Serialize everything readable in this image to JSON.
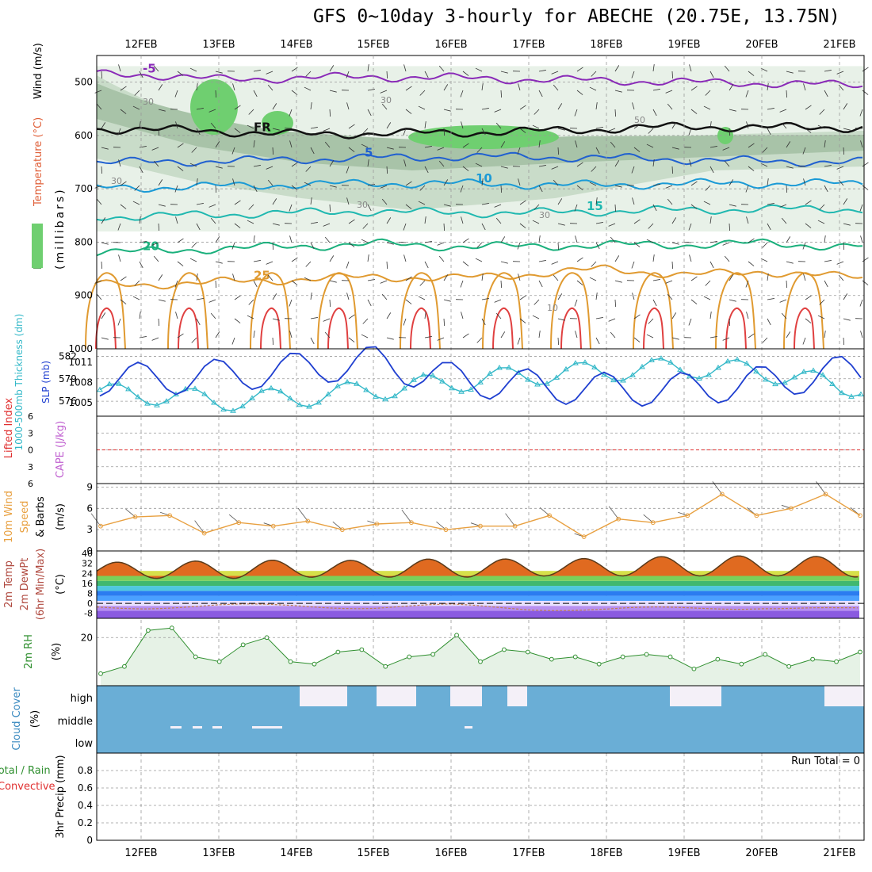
{
  "title": "GFS 0~10day 3-hourly for ABECHE (20.75E, 13.75N)",
  "dates": [
    "12FEB",
    "13FEB",
    "14FEB",
    "15FEB",
    "16FEB",
    "17FEB",
    "18FEB",
    "19FEB",
    "20FEB",
    "21FEB"
  ],
  "panel_labels": {
    "upper": {
      "wind": "Wind (m/s)",
      "temp": "Temperature (°C)",
      "rh": "RH (%)",
      "unit": "(millibars)"
    },
    "slp": {
      "thick": "1000-500mb Thickness (dm)",
      "slp": "SLP (mb)"
    },
    "cape": {
      "li": "Lifted Index",
      "cape": "CAPE (J/kg)"
    },
    "wind10": {
      "a": "10m Wind",
      "b": "Speed",
      "c": "& Barbs",
      "unit": "(m/s)"
    },
    "temp2m": {
      "a": "2m Temp",
      "b": "2m DewPt",
      "c": "(6hr Min/Max)",
      "unit": "(°C)"
    },
    "rh2m": {
      "a": "2m RH",
      "unit": "(%)"
    },
    "cloud": {
      "a": "Cloud Cover",
      "unit": "(%)"
    },
    "precip": {
      "a": "Total / Rain",
      "b": "Convective",
      "c": "3hr Precip (mm)",
      "run_total": "Run Total = 0"
    }
  },
  "colors": {
    "grid": "#999999",
    "slp": "#1f3fd0",
    "thickness": "#33b8c8",
    "wind": "#e8a040",
    "rh": "#2f8f2f",
    "cloud": "#6aaed6",
    "cloud_clear": "#f4f0f8",
    "li": "#e03030"
  },
  "chart_data": [
    {
      "type": "contour",
      "panel": "upper-air cross section",
      "ylabel": "(millibars)",
      "ylim": [
        1000,
        450
      ],
      "yticks": [
        500,
        600,
        700,
        800,
        900,
        1000
      ],
      "temperature_isotherms": [
        {
          "label": "-5",
          "pressure_mb": [
            485,
            495,
            492,
            490,
            492,
            495,
            497,
            500,
            502,
            505
          ]
        },
        {
          "label": "FR",
          "pressure_mb": [
            588,
            592,
            598,
            596,
            595,
            592,
            588,
            583,
            585,
            585
          ]
        },
        {
          "label": "5",
          "pressure_mb": [
            650,
            648,
            645,
            642,
            640,
            640,
            642,
            645,
            648,
            650
          ]
        },
        {
          "label": "10",
          "pressure_mb": [
            698,
            695,
            692,
            690,
            690,
            692,
            693,
            690,
            690,
            690
          ]
        },
        {
          "label": "15",
          "pressure_mb": [
            752,
            748,
            745,
            742,
            745,
            745,
            742,
            740,
            738,
            738
          ]
        },
        {
          "label": "20",
          "pressure_mb": [
            818,
            812,
            808,
            803,
            808,
            808,
            805,
            805,
            802,
            808
          ]
        },
        {
          "label": "25",
          "pressure_mb": [
            880,
            875,
            870,
            865,
            868,
            860,
            850,
            862,
            855,
            865
          ]
        }
      ],
      "rh_contour_labels": [
        "30",
        "50",
        "30",
        "30",
        "30",
        "30",
        "10"
      ]
    },
    {
      "type": "line",
      "panel": "SLP and thickness",
      "x": [
        "12FEB",
        "13FEB",
        "14FEB",
        "15FEB",
        "16FEB",
        "17FEB",
        "18FEB",
        "19FEB",
        "20FEB",
        "21FEB"
      ],
      "series": [
        {
          "name": "SLP (mb)",
          "axis": "right",
          "values": [
            1008.5,
            1009.0,
            1010.0,
            1011.0,
            1008.5,
            1007.5,
            1007.0,
            1007.0,
            1008.0,
            1009.5
          ]
        },
        {
          "name": "1000-500mb Thickness (dm)",
          "axis": "left",
          "values": [
            577.0,
            576.0,
            576.5,
            577.5,
            578.5,
            579.5,
            580.0,
            580.5,
            580.0,
            578.0
          ]
        }
      ],
      "ylim_left": [
        574,
        583
      ],
      "yticks_left": [
        576,
        579,
        582
      ],
      "ylim_right": [
        1003,
        1013
      ],
      "yticks_right": [
        1005,
        1008,
        1011
      ]
    },
    {
      "type": "line",
      "panel": "Lifted Index / CAPE",
      "yticks": [
        -6,
        -3,
        0,
        3,
        6
      ],
      "ylim": [
        -6,
        6
      ],
      "series": [
        {
          "name": "Lifted Index",
          "values": [
            0,
            0,
            0,
            0,
            0,
            0,
            0,
            0,
            0,
            0
          ]
        }
      ]
    },
    {
      "type": "line",
      "panel": "10m wind",
      "ylabel": "(m/s)",
      "ylim": [
        0,
        9.5
      ],
      "yticks": [
        0,
        3,
        6,
        9
      ],
      "series": [
        {
          "name": "10m Wind Speed",
          "values": [
            3.5,
            4.8,
            5.0,
            2.5,
            4.0,
            3.5,
            4.2,
            3.0,
            3.8,
            4.0,
            3.0,
            3.5,
            3.5,
            5.0,
            2.0,
            4.5,
            4.0,
            5.0,
            8.0,
            5.0,
            6.0,
            8.0,
            5.0
          ]
        }
      ]
    },
    {
      "type": "area",
      "panel": "2m temperature",
      "ylabel": "(°C)",
      "ylim": [
        -12,
        42
      ],
      "yticks": [
        -8,
        0,
        8,
        16,
        24,
        32,
        40
      ],
      "series": [
        {
          "name": "2m Temp max",
          "values": [
            33,
            35,
            34,
            35,
            36,
            35,
            37,
            38,
            38,
            37
          ]
        },
        {
          "name": "2m Temp min",
          "values": [
            20,
            20,
            21,
            21,
            21,
            22,
            22,
            22,
            22,
            21
          ]
        },
        {
          "name": "2m DewPt",
          "values": [
            -3,
            -2,
            -2,
            -3,
            -2,
            -4,
            -5,
            -4,
            -3,
            -5
          ]
        }
      ]
    },
    {
      "type": "line",
      "panel": "2m relative humidity",
      "ylabel": "(%)",
      "ylim": [
        0,
        28
      ],
      "yticks": [
        20
      ],
      "series": [
        {
          "name": "2m RH",
          "values": [
            5,
            8,
            23,
            24,
            12,
            10,
            17,
            20,
            10,
            9,
            14,
            15,
            8,
            12,
            13,
            21,
            10,
            15,
            14,
            11,
            12,
            9,
            12,
            13,
            12,
            7,
            11,
            9,
            13,
            8,
            11,
            10,
            14
          ]
        }
      ]
    },
    {
      "type": "bar",
      "panel": "Cloud cover",
      "yticks": [
        "high",
        "middle",
        "low"
      ],
      "high_cloud_gaps": [
        "14FEB",
        "15FEB",
        "16FEB",
        "17FEB",
        "18FEB",
        "19FEB",
        "20FEB",
        "21FEB"
      ]
    },
    {
      "type": "bar",
      "panel": "3hr precipitation",
      "ylabel": "3hr Precip (mm)",
      "ylim": [
        0,
        1
      ],
      "yticks": [
        0,
        0.2,
        0.4,
        0.6,
        0.8
      ],
      "values": [
        0,
        0,
        0,
        0,
        0,
        0,
        0,
        0,
        0,
        0
      ]
    }
  ]
}
